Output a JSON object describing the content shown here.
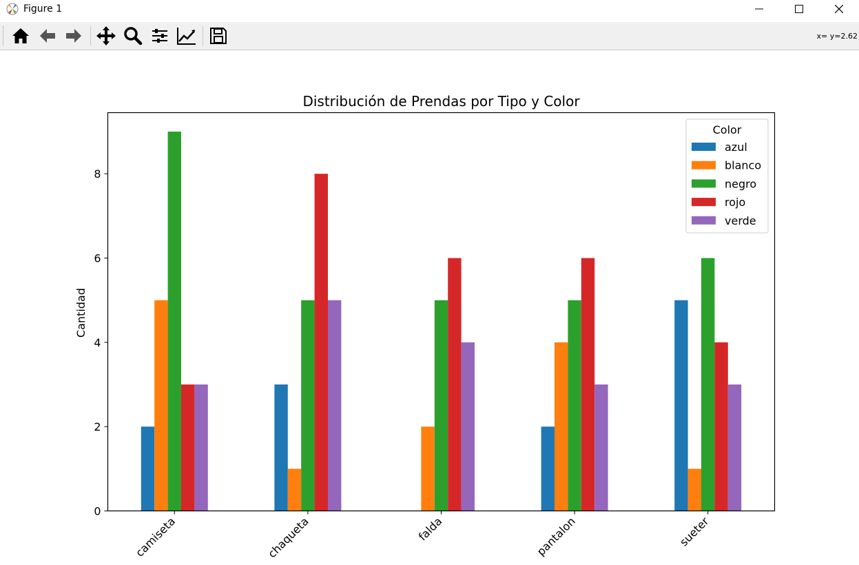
{
  "window": {
    "title": "Figure 1",
    "icon": "matplotlib-icon",
    "controls": [
      "minimize-icon",
      "maximize-icon",
      "close-icon"
    ]
  },
  "toolbar": {
    "buttons": [
      "home-icon",
      "back-icon",
      "forward-icon",
      "pan-icon",
      "zoom-icon",
      "subplots-icon",
      "edit-axes-icon",
      "save-icon"
    ],
    "coords": "x= y=2.62"
  },
  "colors": {
    "azul": "#1f77b4",
    "blanco": "#ff7f0e",
    "negro": "#2ca02c",
    "rojo": "#d62728",
    "verde": "#9467bd"
  },
  "chart_data": {
    "type": "bar",
    "title": "Distribución de Prendas por Tipo y Color",
    "xlabel": "",
    "ylabel": "Cantidad",
    "categories": [
      "camiseta",
      "chaqueta",
      "falda",
      "pantalon",
      "sueter"
    ],
    "series": [
      {
        "name": "azul",
        "values": [
          2,
          3,
          0,
          2,
          5
        ]
      },
      {
        "name": "blanco",
        "values": [
          5,
          1,
          2,
          4,
          1
        ]
      },
      {
        "name": "negro",
        "values": [
          9,
          5,
          5,
          5,
          6
        ]
      },
      {
        "name": "rojo",
        "values": [
          3,
          8,
          6,
          6,
          4
        ]
      },
      {
        "name": "verde",
        "values": [
          3,
          5,
          4,
          3,
          3
        ]
      }
    ],
    "ylim": [
      0,
      9.45
    ],
    "yticks": [
      0,
      2,
      4,
      6,
      8
    ],
    "legend": {
      "title": "Color",
      "position": "top-right"
    },
    "grid": false
  }
}
